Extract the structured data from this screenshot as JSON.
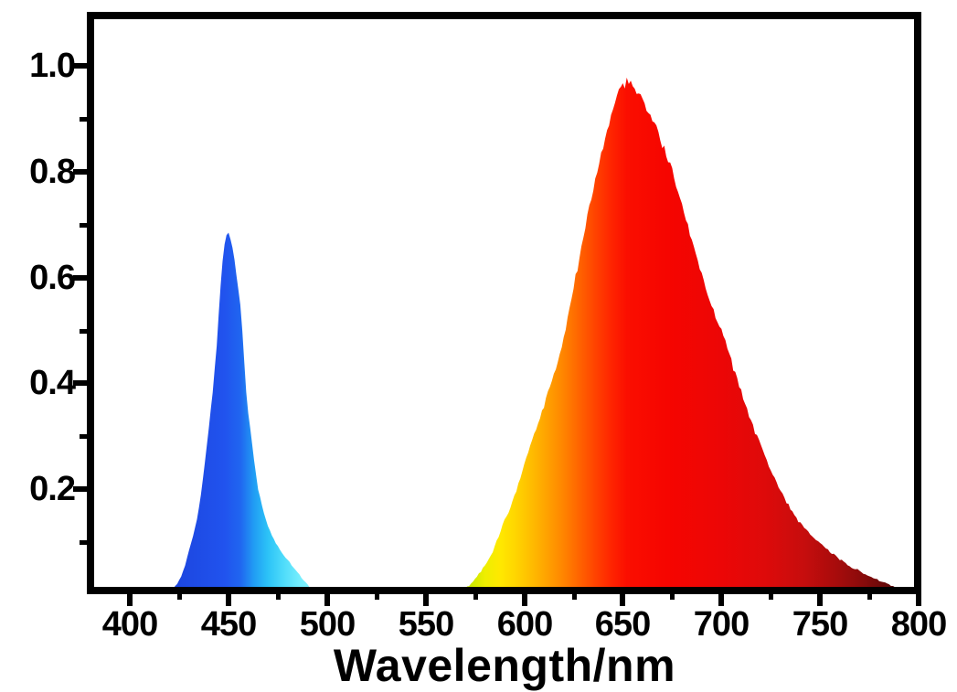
{
  "figure": {
    "description": "LED emission spectrum with blue band and broad red band",
    "background_color": "#ffffff",
    "frame_color": "#000000"
  },
  "chart_data": {
    "type": "area",
    "title": "",
    "xlabel": "Wavelength/nm",
    "ylabel": "",
    "grid": false,
    "legend": false,
    "x_axis": {
      "label": "Wavelength/nm",
      "range": [
        380,
        800
      ],
      "major_ticks": [
        {
          "value": 400,
          "label": "400"
        },
        {
          "value": 450,
          "label": "450"
        },
        {
          "value": 500,
          "label": "500"
        },
        {
          "value": 550,
          "label": "550"
        },
        {
          "value": 600,
          "label": "600"
        },
        {
          "value": 650,
          "label": "650"
        },
        {
          "value": 700,
          "label": "700"
        },
        {
          "value": 750,
          "label": "750"
        },
        {
          "value": 800,
          "label": "800"
        }
      ],
      "minor_ticks": [
        425,
        475,
        525,
        575,
        625,
        675,
        725,
        775
      ]
    },
    "y_axis": {
      "label": "",
      "range": [
        0,
        1.09
      ],
      "major_ticks": [
        {
          "value": 1.0,
          "label": "1.0"
        },
        {
          "value": 0.8,
          "label": "0.8"
        },
        {
          "value": 0.6,
          "label": "0.6"
        },
        {
          "value": 0.4,
          "label": "0.4"
        },
        {
          "value": 0.2,
          "label": "0.2"
        }
      ],
      "minor_ticks": [
        0.9,
        0.7,
        0.5,
        0.3,
        0.1
      ]
    },
    "series": [
      {
        "name": "blue-emission-band",
        "peak_wavelength_nm": 450,
        "peak_intensity": 0.69,
        "wavelength_range_nm": [
          418,
          498
        ],
        "noise": {
          "base": 0.0015,
          "scale": 0.005
        },
        "gradient_stops": [
          [
            418,
            "#1b43dc"
          ],
          [
            448,
            "#2153ee"
          ],
          [
            456,
            "#2066f0"
          ],
          [
            463,
            "#219df4"
          ],
          [
            470,
            "#2cc3f7"
          ],
          [
            478,
            "#4fdcfa"
          ],
          [
            486,
            "#74edfd"
          ],
          [
            498,
            "#90f4fe"
          ]
        ],
        "points": [
          [
            418,
            0.0
          ],
          [
            420,
            0.006
          ],
          [
            422,
            0.013
          ],
          [
            424,
            0.022
          ],
          [
            426,
            0.035
          ],
          [
            428,
            0.055
          ],
          [
            430,
            0.085
          ],
          [
            432,
            0.112
          ],
          [
            434,
            0.143
          ],
          [
            436,
            0.19
          ],
          [
            438,
            0.25
          ],
          [
            440,
            0.315
          ],
          [
            442,
            0.385
          ],
          [
            444,
            0.47
          ],
          [
            446,
            0.585
          ],
          [
            447,
            0.63
          ],
          [
            448,
            0.662
          ],
          [
            449,
            0.683
          ],
          [
            450,
            0.685
          ],
          [
            451,
            0.672
          ],
          [
            452,
            0.655
          ],
          [
            453,
            0.632
          ],
          [
            454,
            0.605
          ],
          [
            455,
            0.578
          ],
          [
            456,
            0.55
          ],
          [
            457,
            0.5
          ],
          [
            458,
            0.44
          ],
          [
            459,
            0.385
          ],
          [
            460,
            0.345
          ],
          [
            461,
            0.315
          ],
          [
            462,
            0.285
          ],
          [
            463,
            0.255
          ],
          [
            464,
            0.225
          ],
          [
            465,
            0.2
          ],
          [
            466,
            0.185
          ],
          [
            467,
            0.17
          ],
          [
            468,
            0.155
          ],
          [
            469,
            0.142
          ],
          [
            470,
            0.13
          ],
          [
            472,
            0.112
          ],
          [
            474,
            0.098
          ],
          [
            476,
            0.086
          ],
          [
            478,
            0.075
          ],
          [
            480,
            0.066
          ],
          [
            482,
            0.057
          ],
          [
            484,
            0.047
          ],
          [
            486,
            0.038
          ],
          [
            488,
            0.028
          ],
          [
            490,
            0.02
          ],
          [
            492,
            0.013
          ],
          [
            494,
            0.007
          ],
          [
            496,
            0.003
          ],
          [
            498,
            0.0
          ]
        ]
      },
      {
        "name": "red-emission-band",
        "peak_wavelength_nm": 650,
        "peak_intensity": 0.97,
        "wavelength_range_nm": [
          563,
          800
        ],
        "noise": {
          "base": 0.003,
          "scale": 0.013
        },
        "gradient_stops": [
          [
            563,
            "#9fdf00"
          ],
          [
            572,
            "#c6e800"
          ],
          [
            580,
            "#eeee00"
          ],
          [
            588,
            "#ffe800"
          ],
          [
            596,
            "#ffd400"
          ],
          [
            604,
            "#ffbb00"
          ],
          [
            612,
            "#ffa000"
          ],
          [
            620,
            "#ff8400"
          ],
          [
            628,
            "#ff6300"
          ],
          [
            636,
            "#ff4300"
          ],
          [
            644,
            "#ff2500"
          ],
          [
            652,
            "#fb0e00"
          ],
          [
            672,
            "#f60500"
          ],
          [
            700,
            "#ec0606"
          ],
          [
            722,
            "#de0a0a"
          ],
          [
            742,
            "#c60d0d"
          ],
          [
            758,
            "#a80c0c"
          ],
          [
            772,
            "#880b0b"
          ],
          [
            783,
            "#670909"
          ],
          [
            792,
            "#4b0707"
          ],
          [
            800,
            "#3e0606"
          ]
        ],
        "points": [
          [
            563,
            0.0
          ],
          [
            566,
            0.004
          ],
          [
            569,
            0.01
          ],
          [
            572,
            0.018
          ],
          [
            575,
            0.03
          ],
          [
            578,
            0.045
          ],
          [
            581,
            0.062
          ],
          [
            584,
            0.083
          ],
          [
            587,
            0.11
          ],
          [
            590,
            0.14
          ],
          [
            593,
            0.165
          ],
          [
            596,
            0.195
          ],
          [
            599,
            0.235
          ],
          [
            602,
            0.27
          ],
          [
            605,
            0.305
          ],
          [
            608,
            0.335
          ],
          [
            611,
            0.37
          ],
          [
            614,
            0.405
          ],
          [
            617,
            0.44
          ],
          [
            620,
            0.49
          ],
          [
            623,
            0.545
          ],
          [
            626,
            0.6
          ],
          [
            629,
            0.655
          ],
          [
            632,
            0.71
          ],
          [
            635,
            0.765
          ],
          [
            638,
            0.82
          ],
          [
            641,
            0.865
          ],
          [
            644,
            0.905
          ],
          [
            646,
            0.93
          ],
          [
            648,
            0.952
          ],
          [
            650,
            0.965
          ],
          [
            652,
            0.972
          ],
          [
            654,
            0.968
          ],
          [
            656,
            0.956
          ],
          [
            658,
            0.946
          ],
          [
            660,
            0.935
          ],
          [
            663,
            0.915
          ],
          [
            666,
            0.89
          ],
          [
            669,
            0.862
          ],
          [
            672,
            0.832
          ],
          [
            675,
            0.8
          ],
          [
            678,
            0.762
          ],
          [
            681,
            0.722
          ],
          [
            684,
            0.682
          ],
          [
            687,
            0.645
          ],
          [
            690,
            0.607
          ],
          [
            693,
            0.568
          ],
          [
            696,
            0.533
          ],
          [
            700,
            0.5
          ],
          [
            703,
            0.465
          ],
          [
            706,
            0.43
          ],
          [
            709,
            0.395
          ],
          [
            712,
            0.362
          ],
          [
            715,
            0.33
          ],
          [
            718,
            0.3
          ],
          [
            721,
            0.272
          ],
          [
            724,
            0.245
          ],
          [
            727,
            0.22
          ],
          [
            730,
            0.197
          ],
          [
            733,
            0.176
          ],
          [
            736,
            0.157
          ],
          [
            739,
            0.14
          ],
          [
            742,
            0.127
          ],
          [
            745,
            0.115
          ],
          [
            748,
            0.105
          ],
          [
            751,
            0.096
          ],
          [
            754,
            0.086
          ],
          [
            757,
            0.077
          ],
          [
            760,
            0.068
          ],
          [
            763,
            0.06
          ],
          [
            766,
            0.053
          ],
          [
            769,
            0.047
          ],
          [
            772,
            0.041
          ],
          [
            775,
            0.036
          ],
          [
            778,
            0.031
          ],
          [
            781,
            0.026
          ],
          [
            784,
            0.022
          ],
          [
            787,
            0.018
          ],
          [
            790,
            0.014
          ],
          [
            793,
            0.01
          ],
          [
            796,
            0.007
          ],
          [
            799,
            0.005
          ],
          [
            800,
            0.004
          ]
        ]
      }
    ]
  }
}
